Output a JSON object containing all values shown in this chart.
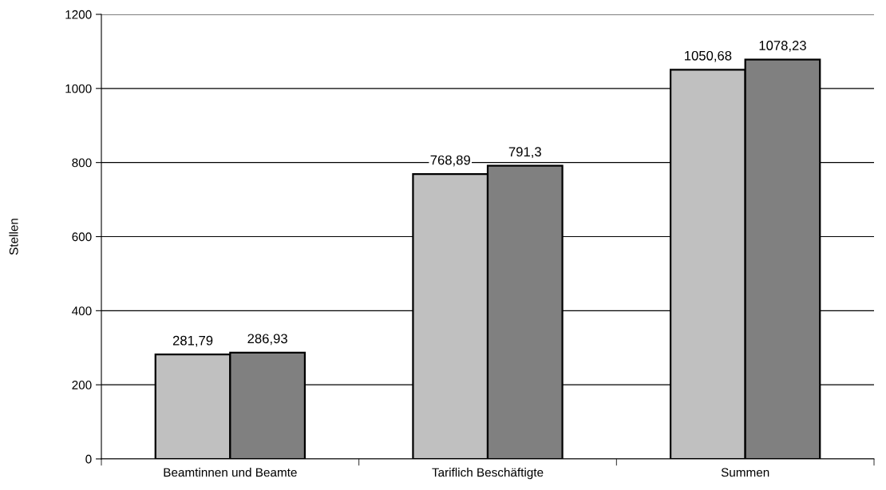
{
  "chart_data": {
    "type": "bar",
    "ylabel": "Stellen",
    "categories": [
      "Beamtinnen und Beamte",
      "Tariflich Beschäftigte",
      "Summen"
    ],
    "series": [
      {
        "color": "#c0c0c0",
        "values": [
          281.79,
          768.89,
          1050.68
        ],
        "value_labels": [
          "281,79",
          "768,89",
          "1050,68"
        ]
      },
      {
        "color": "#808080",
        "values": [
          286.93,
          791.3,
          1078.23
        ],
        "value_labels": [
          "286,93",
          "791,3",
          "1078,23"
        ]
      }
    ],
    "ylim": [
      0,
      1200
    ],
    "yticks": [
      0,
      200,
      400,
      600,
      800,
      1000,
      1200
    ],
    "grid": "y",
    "legend": false
  }
}
